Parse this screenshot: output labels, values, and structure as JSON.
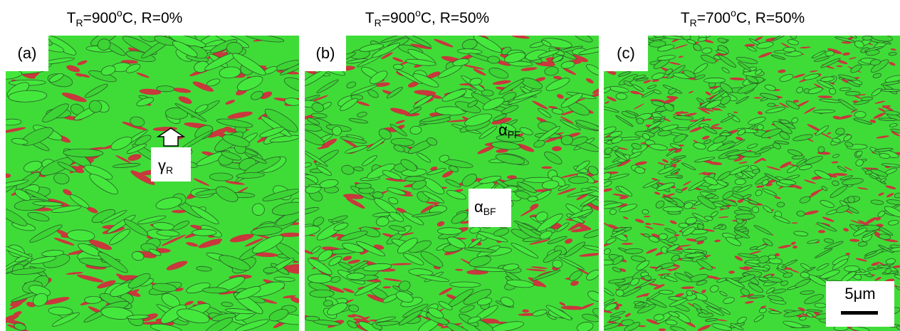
{
  "panels": [
    {
      "title": [
        "T",
        "R",
        "=900",
        "o",
        "C, R=0%"
      ],
      "label": "(a)",
      "annotations": [
        {
          "symbol": "γ",
          "subscript": "R"
        }
      ]
    },
    {
      "title": [
        "T",
        "R",
        "=900",
        "o",
        "C, R=50%"
      ],
      "label": "(b)",
      "annotations": [
        {
          "symbol": "α",
          "subscript": "PF"
        },
        {
          "symbol": "α",
          "subscript": "BF"
        }
      ]
    },
    {
      "title": [
        "T",
        "R",
        "=700",
        "o",
        "C, R=50%"
      ],
      "label": "(c)",
      "annotations": []
    }
  ],
  "scale_bar": "5μm"
}
